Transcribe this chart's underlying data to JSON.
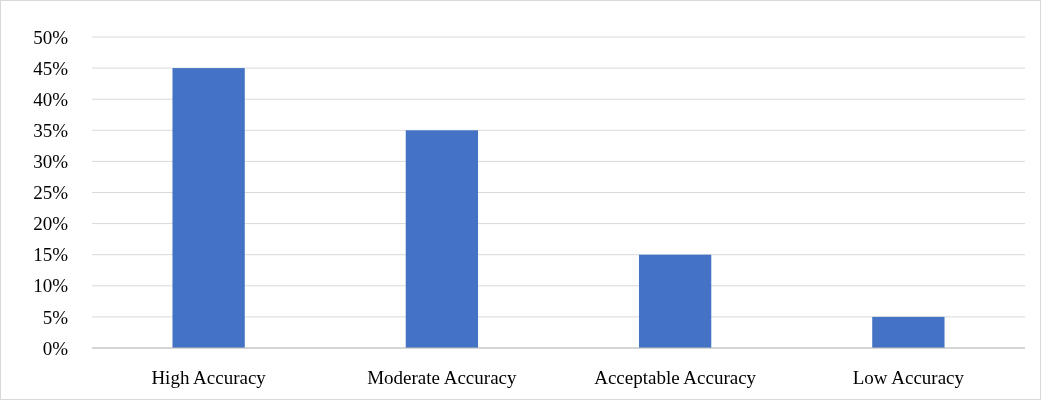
{
  "chart_data": {
    "type": "bar",
    "categories": [
      "High Accuracy",
      "Moderate Accuracy",
      "Acceptable Accuracy",
      "Low Accuracy"
    ],
    "values": [
      45,
      35,
      15,
      5
    ],
    "color": "#4472c4",
    "ylim": [
      0,
      50
    ],
    "yticks": [
      {
        "value": 0,
        "label": "0%"
      },
      {
        "value": 5,
        "label": "5%"
      },
      {
        "value": 10,
        "label": "10%"
      },
      {
        "value": 15,
        "label": "15%"
      },
      {
        "value": 20,
        "label": "20%"
      },
      {
        "value": 25,
        "label": "25%"
      },
      {
        "value": 30,
        "label": "30%"
      },
      {
        "value": 35,
        "label": "35%"
      },
      {
        "value": 40,
        "label": "40%"
      },
      {
        "value": 45,
        "label": "45%"
      },
      {
        "value": 50,
        "label": "50%"
      }
    ],
    "grid": "y"
  }
}
